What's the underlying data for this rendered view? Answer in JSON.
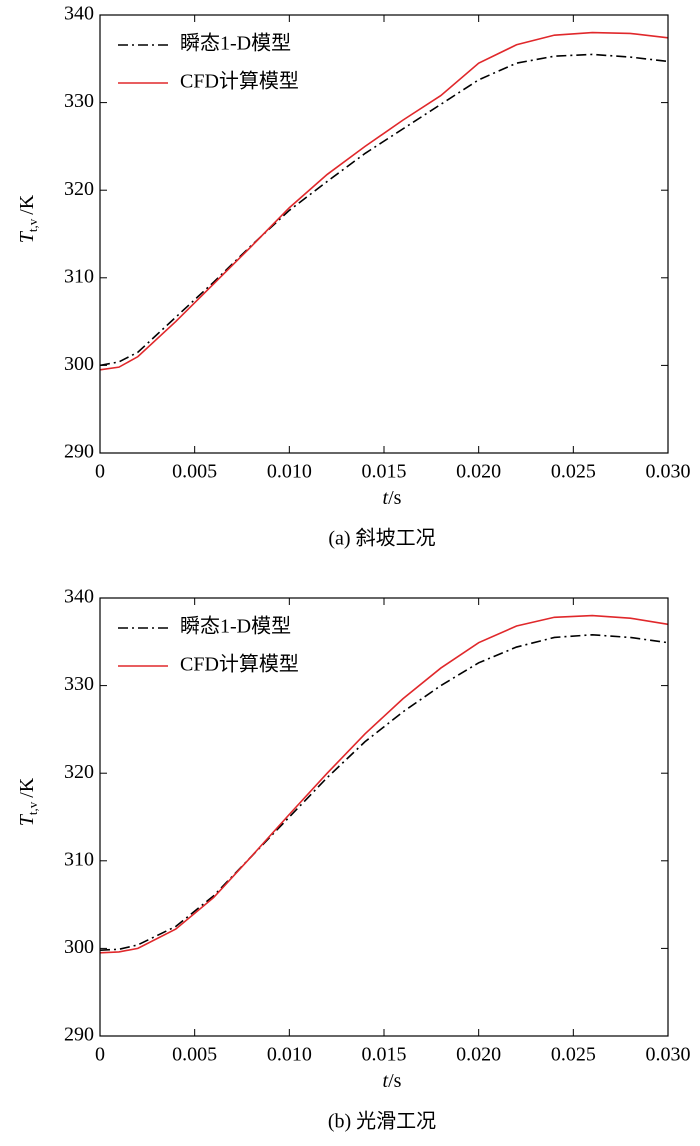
{
  "chart_data": [
    {
      "type": "line",
      "x": [
        0,
        0.001,
        0.002,
        0.004,
        0.006,
        0.008,
        0.01,
        0.012,
        0.014,
        0.016,
        0.018,
        0.02,
        0.022,
        0.024,
        0.026,
        0.028,
        0.03
      ],
      "series": [
        {
          "name": "瞬态1-D模型",
          "color": "#000000",
          "dash": "dashdot",
          "values": [
            300.0,
            300.4,
            301.5,
            305.5,
            309.5,
            313.7,
            317.7,
            321.0,
            324.2,
            327.0,
            329.8,
            332.6,
            334.5,
            335.3,
            335.5,
            335.2,
            334.7
          ]
        },
        {
          "name": "CFD计算模型",
          "color": "#e0282b",
          "dash": "solid",
          "values": [
            299.5,
            299.8,
            301.0,
            305.0,
            309.3,
            313.6,
            318.0,
            321.8,
            325.0,
            328.0,
            330.8,
            334.5,
            336.6,
            337.7,
            338.0,
            337.9,
            337.4
          ]
        }
      ],
      "xlim": [
        0,
        0.03
      ],
      "ylim": [
        290,
        340
      ],
      "xticks": [
        0,
        0.005,
        {
          "value": 0.01,
          "label": "0.010"
        },
        0.015,
        {
          "value": 0.02,
          "label": "0.020"
        },
        0.025,
        {
          "value": 0.03,
          "label": "0.030"
        }
      ],
      "yticks": [
        290,
        300,
        310,
        320,
        330,
        340
      ],
      "x_label": {
        "var": "t",
        "unit": "/s"
      },
      "y_label": {
        "var": "T",
        "sub": "t,v",
        "unit": "/K"
      },
      "caption": "(a) 斜坡工况",
      "legend": "upper left"
    },
    {
      "type": "line",
      "x": [
        0,
        0.001,
        0.002,
        0.004,
        0.006,
        0.008,
        0.01,
        0.012,
        0.014,
        0.016,
        0.018,
        0.02,
        0.022,
        0.024,
        0.026,
        0.028,
        0.03
      ],
      "series": [
        {
          "name": "瞬态1-D模型",
          "color": "#000000",
          "dash": "dashdot",
          "values": [
            299.8,
            299.9,
            300.4,
            302.5,
            306.0,
            310.5,
            315.0,
            319.5,
            323.6,
            327.0,
            330.0,
            332.6,
            334.4,
            335.5,
            335.8,
            335.5,
            334.9
          ]
        },
        {
          "name": "CFD计算模型",
          "color": "#e0282b",
          "dash": "solid",
          "values": [
            299.5,
            299.6,
            300.0,
            302.2,
            305.8,
            310.5,
            315.3,
            320.0,
            324.5,
            328.5,
            332.0,
            334.9,
            336.8,
            337.8,
            338.0,
            337.7,
            337.0
          ]
        }
      ],
      "xlim": [
        0,
        0.03
      ],
      "ylim": [
        290,
        340
      ],
      "xticks": [
        0,
        0.005,
        {
          "value": 0.01,
          "label": "0.010"
        },
        0.015,
        {
          "value": 0.02,
          "label": "0.020"
        },
        0.025,
        {
          "value": 0.03,
          "label": "0.030"
        }
      ],
      "yticks": [
        290,
        300,
        310,
        320,
        330,
        340
      ],
      "x_label": {
        "var": "t",
        "unit": "/s"
      },
      "y_label": {
        "var": "T",
        "sub": "t,v",
        "unit": "/K"
      },
      "caption": "(b) 光滑工况",
      "legend": "upper left"
    }
  ]
}
